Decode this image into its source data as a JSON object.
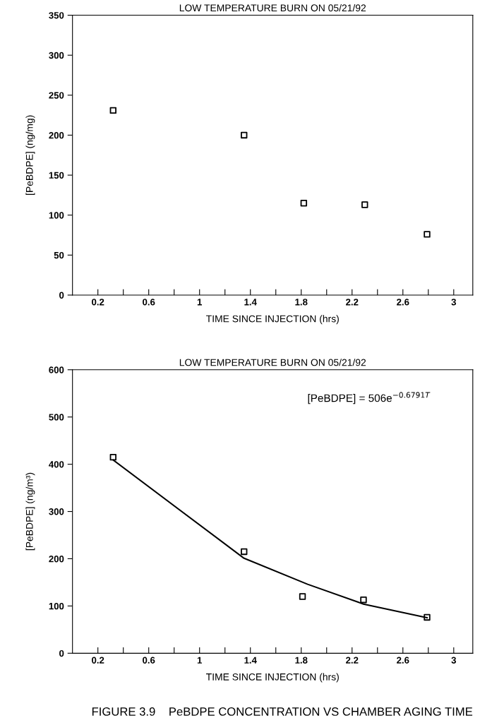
{
  "chart_data": [
    {
      "type": "scatter",
      "title": "LOW TEMPERATURE BURN ON 05/21/92",
      "xlabel": "TIME SINCE INJECTION (hrs)",
      "ylabel": "[PeBDPE] (ng/mg)",
      "xlim": [
        0,
        3.15
      ],
      "xticks": [
        {
          "value": 0.2,
          "label": "0.2"
        },
        {
          "value": 0.4,
          "label": null
        },
        {
          "value": 0.6,
          "label": "0.6"
        },
        {
          "value": 0.8,
          "label": null
        },
        {
          "value": 1,
          "label": "1"
        },
        {
          "value": 1.2,
          "label": null
        },
        {
          "value": 1.4,
          "label": "1.4"
        },
        {
          "value": 1.6,
          "label": null
        },
        {
          "value": 1.8,
          "label": "1.8"
        },
        {
          "value": 2,
          "label": null
        },
        {
          "value": 2.2,
          "label": "2.2"
        },
        {
          "value": 2.4,
          "label": null
        },
        {
          "value": 2.6,
          "label": "2.6"
        },
        {
          "value": 2.8,
          "label": null
        },
        {
          "value": 3,
          "label": "3"
        }
      ],
      "ylim": [
        0,
        350
      ],
      "yticks": [
        0,
        50,
        100,
        150,
        200,
        250,
        300,
        350
      ],
      "grid": false,
      "legend": false,
      "marker": "square",
      "series": [
        {
          "color": "#000000",
          "x": [
            0.32,
            1.35,
            1.82,
            2.3,
            2.79
          ],
          "values": [
            231,
            200,
            115,
            113,
            76
          ]
        }
      ]
    },
    {
      "type": "scatter",
      "title": "LOW TEMPERATURE BURN ON 05/21/92",
      "xlabel": "TIME SINCE INJECTION (hrs)",
      "ylabel": "[PeBDPE] (ng/m³)",
      "annotations": [
        "[PeBDPE] = 506e$^{−0.6791T}$",
        "FIGURE 3.9    PeBDPE CONCENTRATION VS CHAMBER AGING TIME"
      ],
      "xlim": [
        0,
        3.15
      ],
      "xticks": [
        {
          "value": 0.2,
          "label": "0.2"
        },
        {
          "value": 0.4,
          "label": null
        },
        {
          "value": 0.6,
          "label": "0.6"
        },
        {
          "value": 0.8,
          "label": null
        },
        {
          "value": 1,
          "label": "1"
        },
        {
          "value": 1.2,
          "label": null
        },
        {
          "value": 1.4,
          "label": "1.4"
        },
        {
          "value": 1.6,
          "label": null
        },
        {
          "value": 1.8,
          "label": "1.8"
        },
        {
          "value": 2,
          "label": null
        },
        {
          "value": 2.2,
          "label": "2.2"
        },
        {
          "value": 2.4,
          "label": null
        },
        {
          "value": 2.6,
          "label": "2.6"
        },
        {
          "value": 2.8,
          "label": null
        },
        {
          "value": 3,
          "label": "3"
        }
      ],
      "ylim": [
        0,
        600
      ],
      "yticks": [
        0,
        100,
        200,
        300,
        400,
        500,
        600
      ],
      "grid": false,
      "legend": false,
      "marker": "square",
      "series": [
        {
          "color": "#000000",
          "x": [
            0.32,
            1.35,
            1.81,
            2.29,
            2.79
          ],
          "values": [
            415,
            215,
            120,
            113,
            76
          ]
        },
        {
          "type": "line",
          "color": "#000000",
          "x": [
            0.32,
            1.35,
            1.85,
            2.29,
            2.79
          ],
          "values": [
            409,
            201,
            146,
            104,
            75
          ],
          "line_style": "solid",
          "marker": "none"
        }
      ]
    }
  ]
}
